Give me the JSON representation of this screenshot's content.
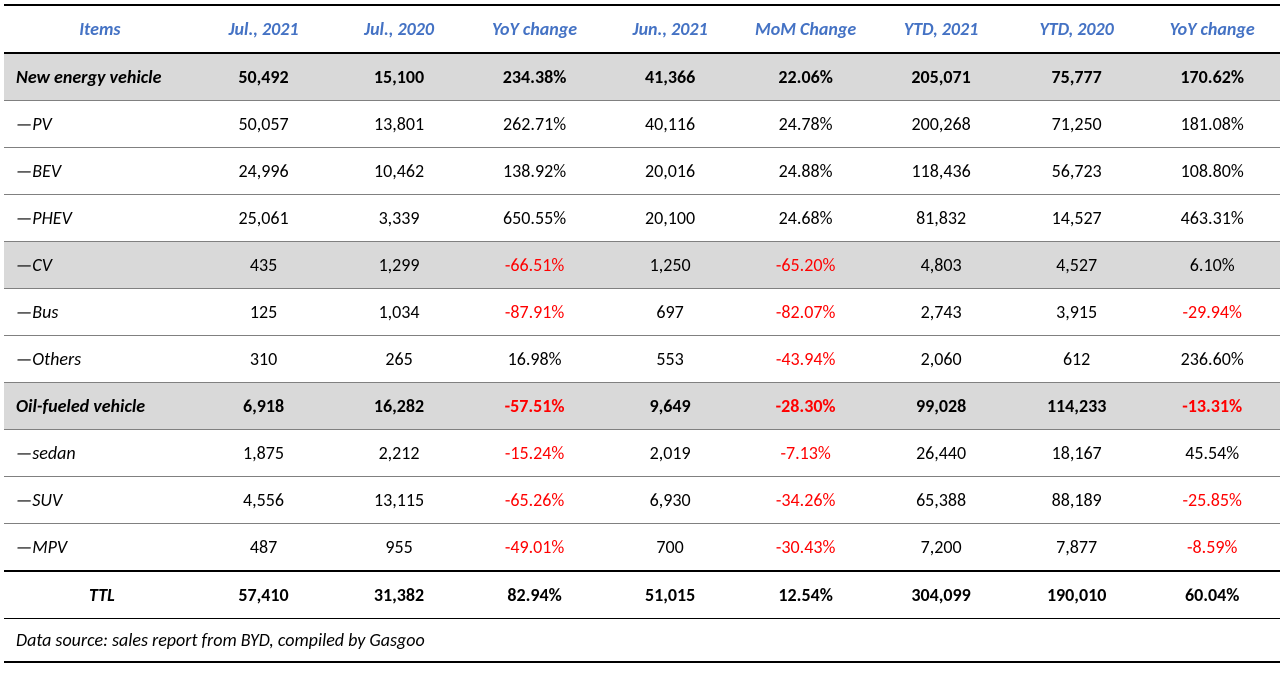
{
  "table": {
    "type": "table",
    "background_color": "#ffffff",
    "header_color": "#4472c4",
    "negative_color": "#ff0000",
    "shaded_bg": "#d9d9d9",
    "border_color": "#000000",
    "row_border_color": "#808080",
    "font_family": "Calibri",
    "font_size_pt": 14,
    "columns": [
      "Items",
      "Jul., 2021",
      "Jul., 2020",
      "YoY change",
      "Jun., 2021",
      "MoM Change",
      "YTD, 2021",
      "YTD, 2020",
      "YoY change"
    ],
    "rows": [
      {
        "item": "New energy vehicle",
        "indent": 0,
        "bold": true,
        "shaded": true,
        "v": [
          "50,492",
          "15,100",
          "234.38%",
          "41,366",
          "22.06%",
          "205,071",
          "75,777",
          "170.62%"
        ],
        "neg": [
          false,
          false,
          false,
          false,
          false,
          false,
          false,
          false
        ]
      },
      {
        "item": "—PV",
        "indent": 1,
        "bold": false,
        "shaded": false,
        "v": [
          "50,057",
          "13,801",
          "262.71%",
          "40,116",
          "24.78%",
          "200,268",
          "71,250",
          "181.08%"
        ],
        "neg": [
          false,
          false,
          false,
          false,
          false,
          false,
          false,
          false
        ]
      },
      {
        "item": "—BEV",
        "indent": 2,
        "bold": false,
        "shaded": false,
        "v": [
          "24,996",
          "10,462",
          "138.92%",
          "20,016",
          "24.88%",
          "118,436",
          "56,723",
          "108.80%"
        ],
        "neg": [
          false,
          false,
          false,
          false,
          false,
          false,
          false,
          false
        ]
      },
      {
        "item": "—PHEV",
        "indent": 2,
        "bold": false,
        "shaded": false,
        "v": [
          "25,061",
          "3,339",
          "650.55%",
          "20,100",
          "24.68%",
          "81,832",
          "14,527",
          "463.31%"
        ],
        "neg": [
          false,
          false,
          false,
          false,
          false,
          false,
          false,
          false
        ]
      },
      {
        "item": "—CV",
        "indent": 1,
        "bold": false,
        "shaded": true,
        "v": [
          "435",
          "1,299",
          "-66.51%",
          "1,250",
          "-65.20%",
          "4,803",
          "4,527",
          "6.10%"
        ],
        "neg": [
          false,
          false,
          true,
          false,
          true,
          false,
          false,
          false
        ]
      },
      {
        "item": "—Bus",
        "indent": 2,
        "bold": false,
        "shaded": false,
        "v": [
          "125",
          "1,034",
          "-87.91%",
          "697",
          "-82.07%",
          "2,743",
          "3,915",
          "-29.94%"
        ],
        "neg": [
          false,
          false,
          true,
          false,
          true,
          false,
          false,
          true
        ]
      },
      {
        "item": "—Others",
        "indent": 2,
        "bold": false,
        "shaded": false,
        "v": [
          "310",
          "265",
          "16.98%",
          "553",
          "-43.94%",
          "2,060",
          "612",
          "236.60%"
        ],
        "neg": [
          false,
          false,
          false,
          false,
          true,
          false,
          false,
          false
        ]
      },
      {
        "item": "Oil-fueled vehicle",
        "indent": 0,
        "bold": true,
        "shaded": true,
        "v": [
          "6,918",
          "16,282",
          "-57.51%",
          "9,649",
          "-28.30%",
          "99,028",
          "114,233",
          "-13.31%"
        ],
        "neg": [
          false,
          false,
          true,
          false,
          true,
          false,
          false,
          true
        ]
      },
      {
        "item": "—sedan",
        "indent": 1,
        "bold": false,
        "shaded": false,
        "v": [
          "1,875",
          "2,212",
          "-15.24%",
          "2,019",
          "-7.13%",
          "26,440",
          "18,167",
          "45.54%"
        ],
        "neg": [
          false,
          false,
          true,
          false,
          true,
          false,
          false,
          false
        ]
      },
      {
        "item": "—SUV",
        "indent": 1,
        "bold": false,
        "shaded": false,
        "v": [
          "4,556",
          "13,115",
          "-65.26%",
          "6,930",
          "-34.26%",
          "65,388",
          "88,189",
          "-25.85%"
        ],
        "neg": [
          false,
          false,
          true,
          false,
          true,
          false,
          false,
          true
        ]
      },
      {
        "item": "—MPV",
        "indent": 1,
        "bold": false,
        "shaded": false,
        "v": [
          "487",
          "955",
          "-49.01%",
          "700",
          "-30.43%",
          "7,200",
          "7,877",
          "-8.59%"
        ],
        "neg": [
          false,
          false,
          true,
          false,
          true,
          false,
          false,
          true
        ]
      }
    ],
    "total": {
      "item": "TTL",
      "v": [
        "57,410",
        "31,382",
        "82.94%",
        "51,015",
        "12.54%",
        "304,099",
        "190,010",
        "60.04%"
      ],
      "neg": [
        false,
        false,
        false,
        false,
        false,
        false,
        false,
        false
      ]
    },
    "source": "Data source: sales report from BYD, compiled by Gasgoo"
  }
}
